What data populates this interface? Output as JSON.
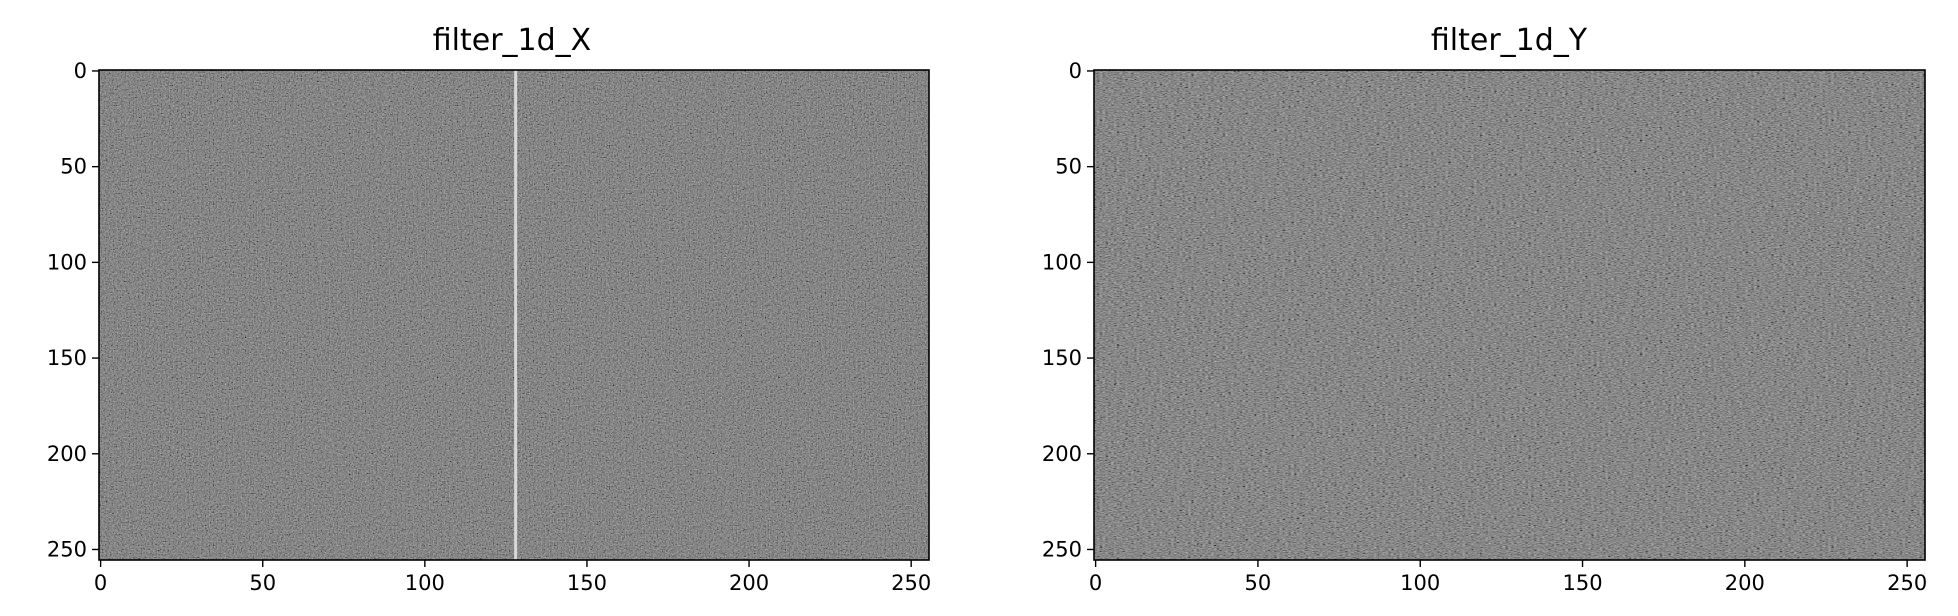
{
  "chart_data": [
    {
      "type": "heatmap",
      "title": "filter_1d_X",
      "colormap": "gray",
      "xlim": [
        0,
        255
      ],
      "ylim": [
        255,
        0
      ],
      "xticks": [
        0,
        50,
        100,
        150,
        200,
        250
      ],
      "yticks": [
        0,
        50,
        100,
        150,
        200,
        250
      ],
      "content": "fine-grained noise texture, dark gray background",
      "feature": {
        "kind": "vertical-line",
        "x": 128,
        "color": "#d8d8d8"
      }
    },
    {
      "type": "heatmap",
      "title": "filter_1d_Y",
      "colormap": "gray",
      "xlim": [
        0,
        255
      ],
      "ylim": [
        255,
        0
      ],
      "xticks": [
        0,
        50,
        100,
        150,
        200,
        250
      ],
      "yticks": [
        0,
        50,
        100,
        150,
        200,
        250
      ],
      "content": "fine horizontally-streaked noise texture, dark gray background",
      "feature": null
    }
  ]
}
